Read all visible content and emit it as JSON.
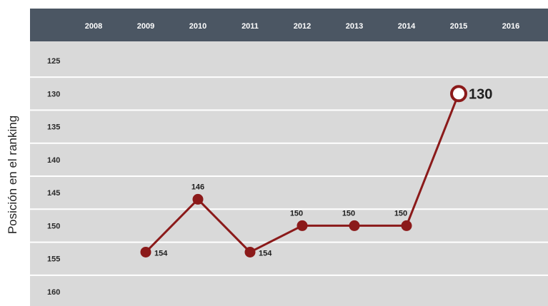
{
  "colors": {
    "header_bg": "#4b5663",
    "plot_bg": "#d9d9d9",
    "grid": "#ffffff",
    "line": "#8b1a1a",
    "marker": "#8b1a1a",
    "highlight_fill": "#ffffff"
  },
  "chart_data": {
    "type": "line",
    "title": "",
    "xlabel": "",
    "ylabel": "Posición en el ranking",
    "x_tick_labels": [
      "2008",
      "2009",
      "2010",
      "2011",
      "2012",
      "2013",
      "2014",
      "2015",
      "2016"
    ],
    "y_tick_labels": [
      "125",
      "130",
      "135",
      "140",
      "145",
      "150",
      "155",
      "160"
    ],
    "ylim": [
      160,
      125
    ],
    "y_inverted": true,
    "x_axis_position": "top",
    "grid": true,
    "legend": "none",
    "x": [
      "2009",
      "2010",
      "2011",
      "2012",
      "2013",
      "2014",
      "2015"
    ],
    "y": [
      154,
      146,
      154,
      150,
      150,
      150,
      130
    ],
    "data_labels": [
      "154",
      "146",
      "154",
      "150",
      "150",
      "150",
      "130"
    ],
    "highlight_point": "2015"
  }
}
